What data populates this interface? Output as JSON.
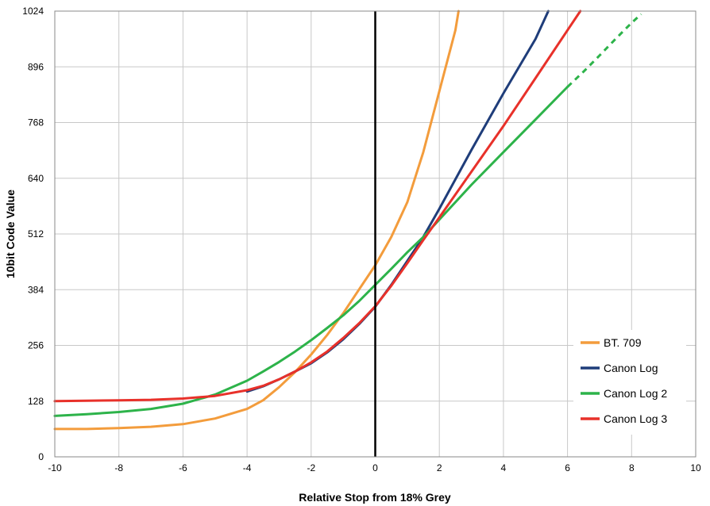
{
  "chart_data": {
    "type": "line",
    "title": "",
    "xlabel": "Relative Stop from 18% Grey",
    "ylabel": "10bit Code Value",
    "xlim": [
      -10,
      10
    ],
    "ylim": [
      0,
      1024
    ],
    "xticks": [
      -10,
      -8,
      -6,
      -4,
      -2,
      0,
      2,
      4,
      6,
      8,
      10
    ],
    "yticks": [
      0,
      128,
      256,
      384,
      512,
      640,
      768,
      896,
      1024
    ],
    "grid": true,
    "legend_position": "bottom-right",
    "reference_line": {
      "x": 0,
      "color": "#000000"
    },
    "series": [
      {
        "name": "BT. 709",
        "color": "#F39C3C",
        "x": [
          -10,
          -9,
          -8,
          -7,
          -6,
          -5,
          -4,
          -3.5,
          -3,
          -2.5,
          -2,
          -1.5,
          -1,
          -0.5,
          0,
          0.5,
          1,
          1.5,
          2,
          2.5,
          2.6
        ],
        "y": [
          64,
          64,
          66,
          69,
          75,
          88,
          110,
          130,
          160,
          195,
          235,
          280,
          330,
          385,
          440,
          505,
          585,
          700,
          840,
          980,
          1024
        ]
      },
      {
        "name": "Canon Log",
        "color": "#1F3D7A",
        "x": [
          -4,
          -3.5,
          -3,
          -2.5,
          -2,
          -1.5,
          -1,
          -0.5,
          0,
          0.5,
          1,
          1.5,
          2,
          3,
          4,
          5,
          5.4
        ],
        "y": [
          150,
          162,
          178,
          196,
          215,
          240,
          270,
          305,
          345,
          395,
          450,
          505,
          570,
          705,
          835,
          960,
          1024
        ]
      },
      {
        "name": "Canon Log 2",
        "color": "#2DB34A",
        "x": [
          -10,
          -9,
          -8,
          -7,
          -6,
          -5,
          -4,
          -3.5,
          -3,
          -2.5,
          -2,
          -1.5,
          -1,
          -0.5,
          0,
          0.5,
          1,
          1.5,
          2,
          3,
          4,
          5,
          6,
          6.5,
          7,
          7.5,
          8,
          8.3
        ],
        "y": [
          94,
          98,
          103,
          110,
          122,
          143,
          175,
          196,
          218,
          242,
          268,
          296,
          325,
          358,
          395,
          432,
          470,
          505,
          545,
          625,
          700,
          775,
          850,
          885,
          922,
          960,
          997,
          1017
        ],
        "dashed_from_x": 6.5
      },
      {
        "name": "Canon Log 3",
        "color": "#E8312A",
        "x": [
          -10,
          -9,
          -8,
          -7,
          -6,
          -5,
          -4,
          -3.5,
          -3,
          -2.5,
          -2,
          -1.5,
          -1,
          -0.5,
          0,
          0.5,
          1,
          1.5,
          2,
          3,
          4,
          5,
          6,
          6.4
        ],
        "y": [
          128,
          129,
          130,
          131,
          134,
          140,
          153,
          163,
          178,
          196,
          217,
          242,
          273,
          307,
          346,
          393,
          445,
          498,
          550,
          655,
          760,
          870,
          980,
          1024
        ]
      }
    ]
  }
}
